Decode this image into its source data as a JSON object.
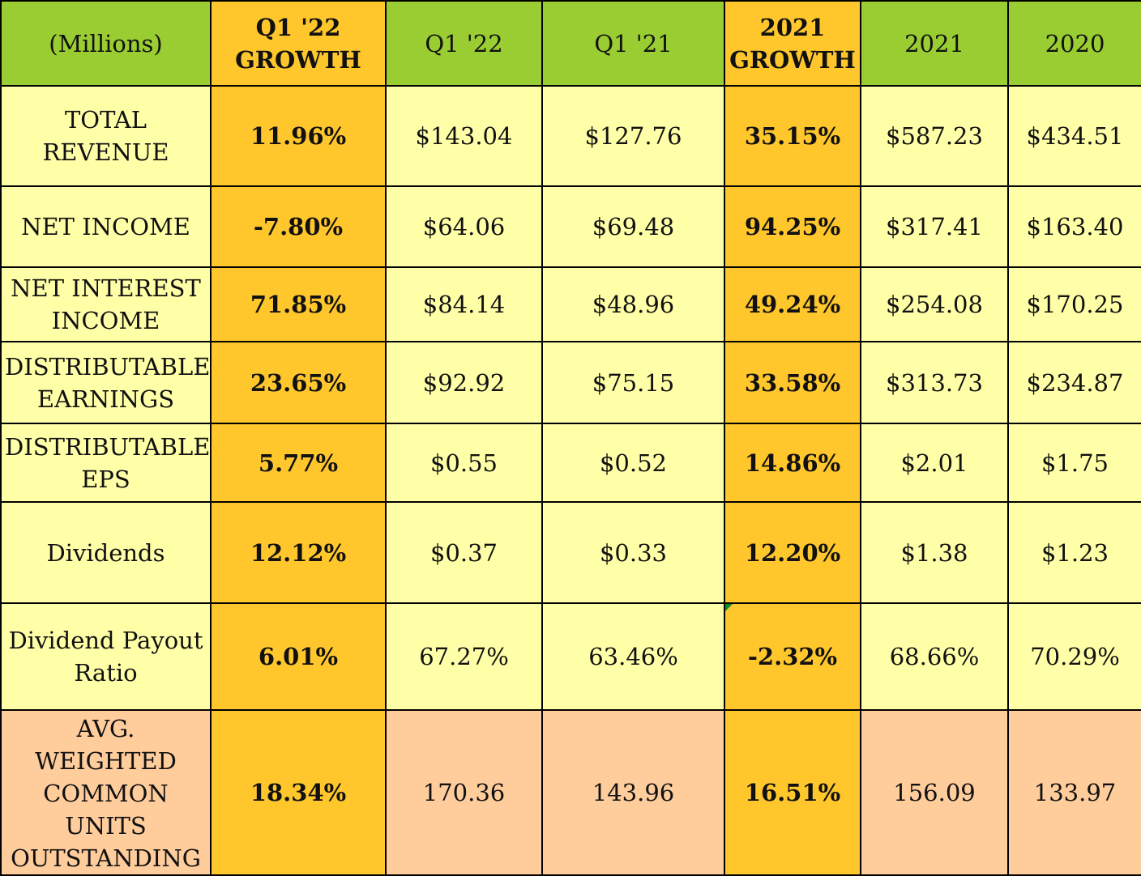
{
  "colors": {
    "header": "#9acd32",
    "growth": "#ffc72c",
    "row": "#ffffa8",
    "last_row": "#ffcc9c"
  },
  "header": {
    "label": "(Millions)",
    "q1_22_growth": "Q1 '22\nGROWTH",
    "q1_22": "Q1 '22",
    "q1_21": "Q1 '21",
    "growth_2021": "2021\nGROWTH",
    "y2021": "2021",
    "y2020": "2020"
  },
  "rows": [
    {
      "label": "TOTAL REVENUE",
      "q1_22_growth": "11.96%",
      "q1_22": "$143.04",
      "q1_21": "$127.76",
      "growth_2021": "35.15%",
      "y2021": "$587.23",
      "y2020": "$434.51"
    },
    {
      "label": "NET INCOME",
      "q1_22_growth": "-7.80%",
      "q1_22": "$64.06",
      "q1_21": "$69.48",
      "growth_2021": "94.25%",
      "y2021": "$317.41",
      "y2020": "$163.40"
    },
    {
      "label": "NET INTEREST INCOME",
      "q1_22_growth": "71.85%",
      "q1_22": "$84.14",
      "q1_21": "$48.96",
      "growth_2021": "49.24%",
      "y2021": "$254.08",
      "y2020": "$170.25"
    },
    {
      "label": "DISTRIBUTABLE EARNINGS",
      "q1_22_growth": "23.65%",
      "q1_22": "$92.92",
      "q1_21": "$75.15",
      "growth_2021": "33.58%",
      "y2021": "$313.73",
      "y2020": "$234.87"
    },
    {
      "label": "DISTRIBUTABLE EPS",
      "q1_22_growth": "5.77%",
      "q1_22": "$0.55",
      "q1_21": "$0.52",
      "growth_2021": "14.86%",
      "y2021": "$2.01",
      "y2020": "$1.75"
    },
    {
      "label": "Dividends",
      "q1_22_growth": "12.12%",
      "q1_22": "$0.37",
      "q1_21": "$0.33",
      "growth_2021": "12.20%",
      "y2021": "$1.38",
      "y2020": "$1.23"
    },
    {
      "label": "Dividend Payout Ratio",
      "q1_22_growth": "6.01%",
      "q1_22": "67.27%",
      "q1_21": "63.46%",
      "growth_2021": "-2.32%",
      "y2021": "68.66%",
      "y2020": "70.29%"
    },
    {
      "label": "AVG. WEIGHTED COMMON UNITS OUTSTANDING",
      "q1_22_growth": "18.34%",
      "q1_22": "170.36",
      "q1_21": "143.96",
      "growth_2021": "16.51%",
      "y2021": "156.09",
      "y2020": "133.97"
    }
  ]
}
